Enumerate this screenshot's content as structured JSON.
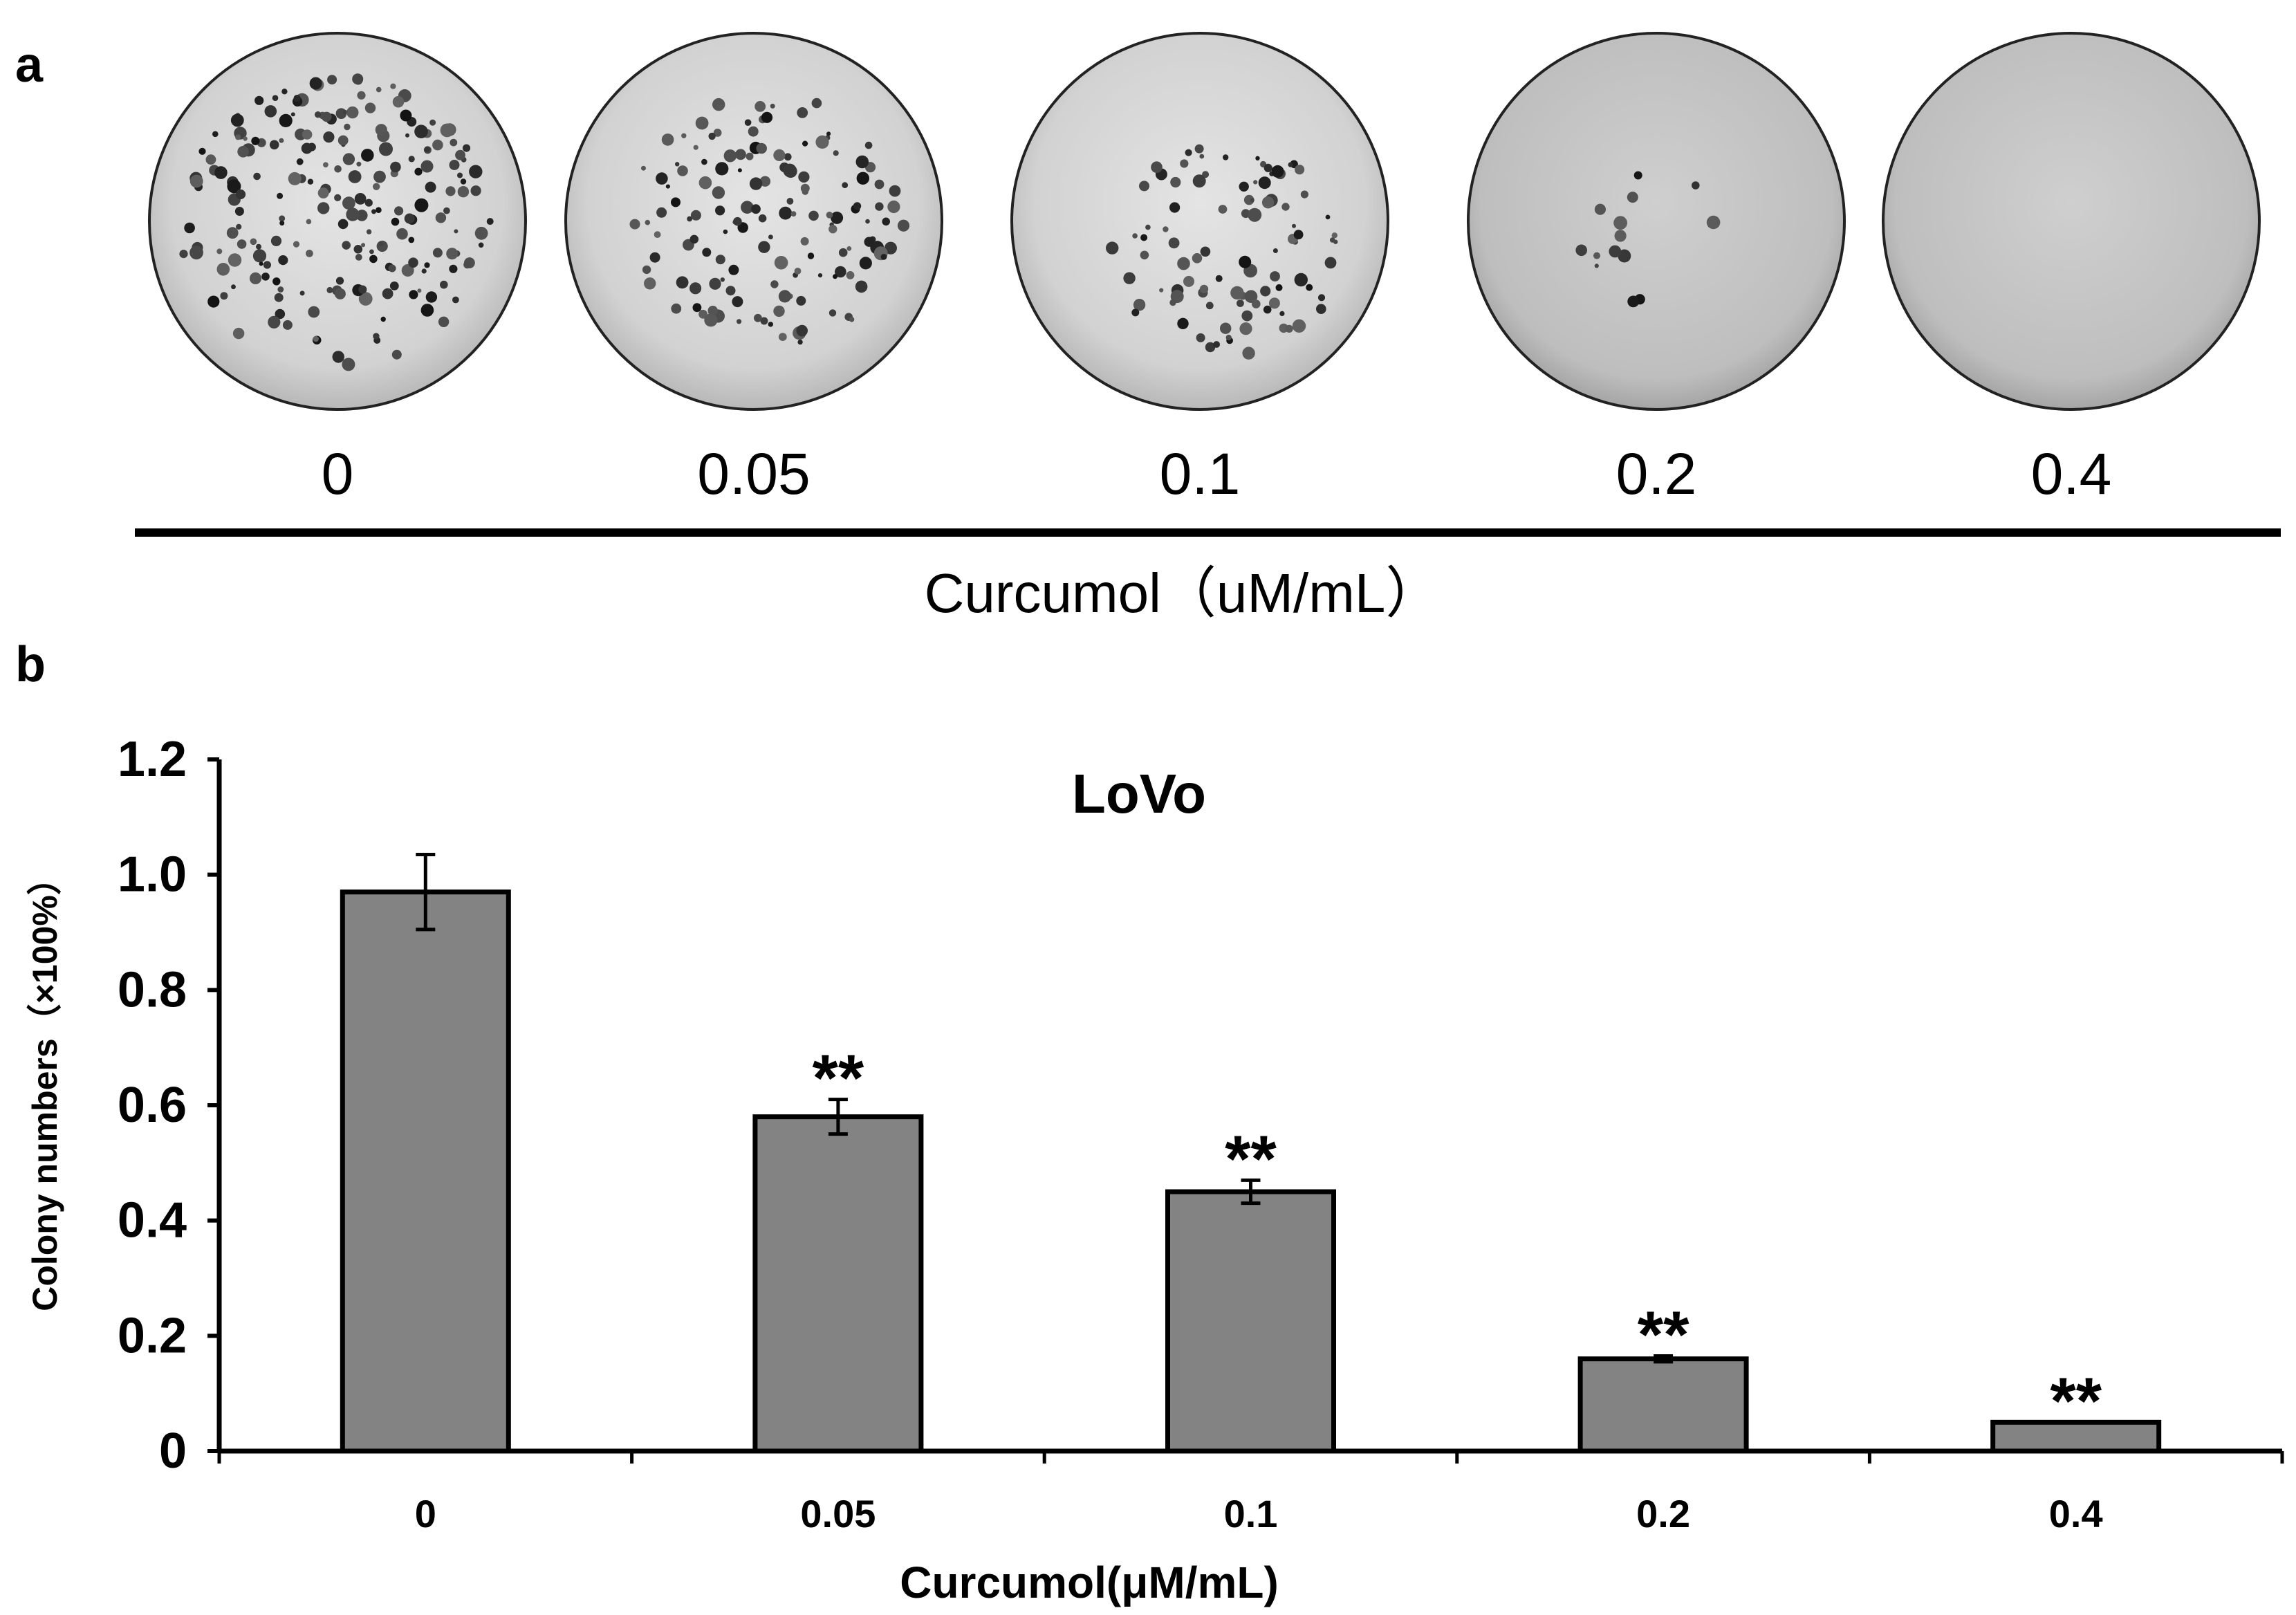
{
  "panel_a": {
    "label": "a",
    "doses": [
      "0",
      "0.05",
      "0.1",
      "0.2",
      "0.4"
    ],
    "axis_title": "Curcumol（uM/mL）",
    "plate_colony_counts": [
      220,
      140,
      95,
      14,
      0
    ]
  },
  "panel_b": {
    "label": "b"
  },
  "chart_data": {
    "type": "bar",
    "title": "LoVo",
    "categories": [
      "0",
      "0.05",
      "0.1",
      "0.2",
      "0.4"
    ],
    "values": [
      0.97,
      0.58,
      0.45,
      0.16,
      0.05
    ],
    "errors": [
      0.065,
      0.03,
      0.02,
      0.005,
      0.0
    ],
    "significance": [
      "",
      "**",
      "**",
      "**",
      "**"
    ],
    "xlabel": "Curcumol(μM/mL)",
    "ylabel": "Colony numbers（×100%）",
    "ylim": [
      0,
      1.2
    ],
    "yticks": [
      "0",
      "0.2",
      "0.4",
      "0.6",
      "0.8",
      "1.0",
      "1.2"
    ],
    "bar_color": "#838383",
    "grid": false
  }
}
